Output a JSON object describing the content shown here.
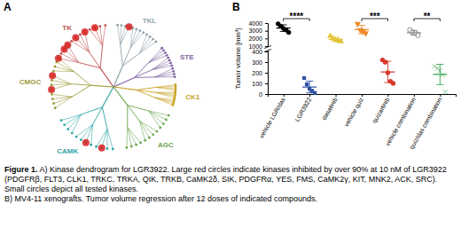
{
  "chart_data": {
    "type": "scatter",
    "panel_label": "B",
    "ylabel": "Tumor volume [mm³]",
    "categories": [
      "vehicle LGR/das",
      "LGR3922",
      "dasatinib",
      "vehicle quiz",
      "quizartinib",
      "vehicle combination",
      "quiz/das combination"
    ],
    "values": [
      [
        3900,
        3600,
        3300,
        3100,
        2800
      ],
      [
        150,
        90,
        50,
        30,
        10
      ],
      [
        2300,
        2000,
        1800,
        1700,
        1600
      ],
      [
        3900,
        3100,
        2900,
        2700
      ],
      [
        320,
        300,
        200,
        120,
        100
      ],
      [
        3100,
        2800,
        2700,
        2400
      ],
      [
        260,
        240,
        220,
        180,
        20
      ]
    ],
    "mean": [
      3340,
      66,
      1880,
      3150,
      208,
      2750,
      184
    ],
    "error": [
      430,
      55,
      280,
      530,
      100,
      290,
      95
    ],
    "colors": [
      "#000000",
      "#2e4fa3",
      "#e3c53a",
      "#f0892a",
      "#d6392b",
      "#8c8c8c",
      "#3aa655"
    ],
    "markers": [
      "circle",
      "square",
      "triangle",
      "triangle-down",
      "circle",
      "circle-open",
      "cross"
    ],
    "ylim": [
      0,
      4000
    ],
    "ybreak": [
      400,
      1000
    ],
    "yticks": [
      0,
      100,
      200,
      300,
      400,
      1000,
      2000,
      3000,
      4000
    ],
    "annotations": [
      {
        "from": 0,
        "to": 1,
        "text": "****"
      },
      {
        "from": 3,
        "to": 4,
        "text": "***"
      },
      {
        "from": 5,
        "to": 6,
        "text": "**"
      }
    ]
  },
  "dendrogram": {
    "panel_label": "A",
    "groups": [
      "TK",
      "TKL",
      "STE",
      "CK1",
      "AGC",
      "CAMK",
      "CMGC"
    ]
  },
  "caption": {
    "figure": "Figure 1.",
    "a": "A) Kinase dendrogram for LGR3922. Large red circles indicate kinases inhibited by over 90% at 10 nM of LGR3922 (PDGFRβ, FLT3, CLK1, TRKC, TRKA, QIK, TRKB, CaMK2δ, SIK, PDGFRα, YES, FMS, CaMK2γ, KIT, MNK2, ACK, SRC). Small circles depict all tested kinases.",
    "b": "B) MV4-11 xenografts. Tumor volume regression after 12 doses of indicated compounds."
  }
}
